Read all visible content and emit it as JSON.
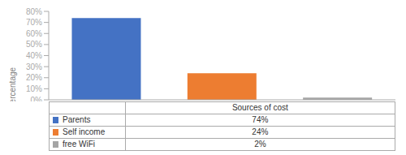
{
  "chart_data": {
    "type": "bar",
    "categories": [
      "Parents",
      "Self income",
      "free WiFi"
    ],
    "values": [
      74,
      24,
      2
    ],
    "value_labels": [
      "74%",
      "24%",
      "2%"
    ],
    "colors": [
      "#4472C4",
      "#ED7D31",
      "#A5A5A5"
    ],
    "xlabel": "Sources of cost",
    "ylabel": "Percentage",
    "ylim": [
      0,
      80
    ],
    "yticks": [
      {
        "value": 0,
        "label": "0%"
      },
      {
        "value": 10,
        "label": "10%"
      },
      {
        "value": 20,
        "label": "20%"
      },
      {
        "value": 30,
        "label": "30%"
      },
      {
        "value": 40,
        "label": "40%"
      },
      {
        "value": 50,
        "label": "50%"
      },
      {
        "value": 60,
        "label": "60%"
      },
      {
        "value": 70,
        "label": "70%"
      },
      {
        "value": 80,
        "label": "80%"
      }
    ],
    "tick_labels": "y",
    "grid": false
  }
}
